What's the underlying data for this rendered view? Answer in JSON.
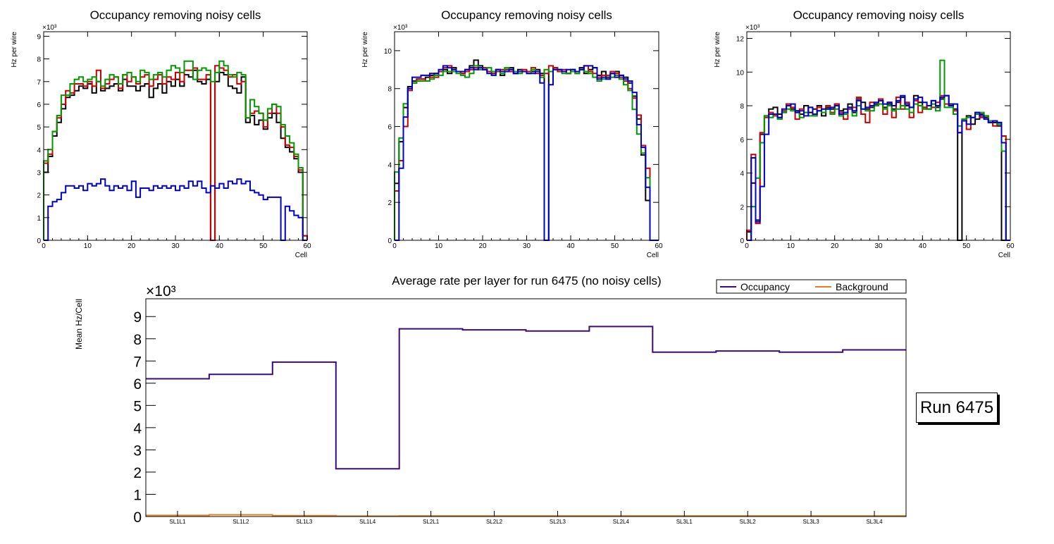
{
  "colors": {
    "black": "#000000",
    "red": "#cc0000",
    "green": "#009900",
    "blue": "#0000cc",
    "occupancy": "#3d0a78",
    "background": "#e08020"
  },
  "run_label": "Run 6475",
  "chart_data": [
    {
      "type": "step-histogram",
      "title": "Occupancy removing noisy cells",
      "xlabel": "Cell",
      "ylabel": "Hz per wire",
      "multiplier": "×10³",
      "xlim": [
        0,
        60
      ],
      "ylim": [
        0,
        9.2
      ],
      "xticks": [
        0,
        10,
        20,
        30,
        40,
        50,
        60
      ],
      "yticks": [
        0,
        1,
        2,
        3,
        4,
        5,
        6,
        7,
        8,
        9
      ],
      "series": [
        {
          "name": "black",
          "color": "#000000",
          "values": [
            3.0,
            3.7,
            4.6,
            5.2,
            5.8,
            6.3,
            6.4,
            6.6,
            6.8,
            6.7,
            6.9,
            6.5,
            7.0,
            6.6,
            6.7,
            6.8,
            6.9,
            6.6,
            7.1,
            6.8,
            6.8,
            6.6,
            6.8,
            6.9,
            6.3,
            6.7,
            6.9,
            6.5,
            7.0,
            6.8,
            7.1,
            6.8,
            7.3,
            7.2,
            7.5,
            7.0,
            6.9,
            7.1,
            0.0,
            7.0,
            7.4,
            7.3,
            6.8,
            6.7,
            6.5,
            7.2,
            5.2,
            5.5,
            5.1,
            5.3,
            4.9,
            5.4,
            5.6,
            5.2,
            4.5,
            4.1,
            3.9,
            3.6,
            3.0,
            0.2
          ]
        },
        {
          "name": "red",
          "color": "#cc0000",
          "values": [
            3.4,
            3.8,
            4.8,
            5.4,
            6.0,
            6.6,
            6.5,
            6.9,
            6.9,
            6.8,
            7.0,
            6.8,
            7.5,
            6.7,
            6.9,
            7.1,
            7.2,
            6.7,
            7.3,
            7.0,
            7.2,
            6.9,
            7.2,
            7.3,
            6.8,
            7.1,
            7.3,
            6.9,
            7.2,
            7.1,
            7.4,
            7.0,
            7.5,
            7.5,
            7.6,
            7.1,
            7.1,
            7.3,
            0.0,
            7.7,
            7.6,
            7.5,
            7.2,
            7.3,
            6.9,
            7.0,
            5.4,
            5.6,
            5.7,
            5.6,
            5.0,
            5.6,
            6.0,
            5.6,
            5.0,
            4.2,
            4.1,
            3.7,
            3.1,
            0.2
          ]
        },
        {
          "name": "green",
          "color": "#009900",
          "values": [
            3.5,
            4.0,
            4.8,
            5.5,
            6.4,
            6.4,
            6.9,
            7.1,
            7.2,
            7.0,
            7.1,
            7.2,
            7.0,
            6.8,
            7.1,
            7.3,
            7.2,
            6.9,
            7.3,
            7.4,
            7.2,
            7.0,
            7.5,
            7.4,
            7.1,
            7.3,
            7.4,
            7.2,
            7.5,
            7.7,
            7.6,
            7.4,
            7.9,
            7.9,
            7.1,
            7.5,
            7.6,
            7.5,
            7.0,
            7.4,
            7.9,
            7.7,
            7.3,
            7.2,
            7.4,
            7.3,
            5.4,
            6.2,
            5.9,
            5.6,
            5.3,
            5.8,
            6.0,
            5.9,
            5.1,
            4.6,
            4.3,
            3.8,
            3.2,
            0.0
          ]
        },
        {
          "name": "blue",
          "color": "#0000cc",
          "values": [
            0.0,
            1.5,
            1.7,
            1.8,
            2.1,
            2.4,
            2.4,
            2.3,
            2.4,
            2.2,
            2.5,
            2.4,
            2.5,
            2.7,
            2.4,
            2.2,
            2.4,
            2.3,
            2.4,
            2.2,
            2.6,
            1.9,
            2.3,
            2.3,
            2.2,
            2.4,
            2.3,
            2.4,
            2.3,
            2.4,
            2.2,
            2.4,
            2.3,
            2.6,
            2.4,
            2.6,
            2.3,
            2.1,
            2.4,
            2.3,
            2.5,
            2.3,
            2.6,
            2.5,
            2.7,
            2.5,
            2.6,
            2.2,
            2.1,
            2.0,
            1.8,
            1.9,
            1.9,
            1.9,
            0.0,
            1.5,
            1.3,
            1.1,
            1.0,
            0.0
          ]
        }
      ]
    },
    {
      "type": "step-histogram",
      "title": "Occupancy removing noisy cells",
      "xlabel": "Cell",
      "ylabel": "Hz per wire",
      "multiplier": "×10³",
      "xlim": [
        0,
        60
      ],
      "ylim": [
        0,
        11
      ],
      "xticks": [
        0,
        10,
        20,
        30,
        40,
        50,
        60
      ],
      "yticks": [
        0,
        2,
        4,
        6,
        8,
        10
      ],
      "series": [
        {
          "name": "black",
          "color": "#000000",
          "values": [
            3.0,
            5.2,
            7.0,
            8.1,
            8.4,
            8.5,
            8.5,
            8.6,
            8.7,
            8.8,
            8.9,
            9.0,
            8.8,
            9.1,
            8.9,
            8.8,
            9.0,
            9.2,
            9.5,
            9.2,
            9.0,
            8.9,
            8.8,
            9.0,
            8.7,
            9.0,
            9.1,
            8.8,
            9.0,
            8.9,
            8.9,
            8.9,
            9.0,
            8.8,
            0.0,
            8.9,
            9.1,
            9.0,
            8.9,
            8.8,
            9.0,
            8.9,
            9.1,
            8.8,
            9.0,
            9.1,
            8.7,
            8.9,
            8.6,
            8.8,
            8.9,
            8.7,
            8.6,
            8.3,
            7.6,
            6.4,
            4.5,
            2.1,
            0.0,
            0.0
          ]
        },
        {
          "name": "red",
          "color": "#cc0000",
          "values": [
            2.6,
            4.2,
            6.0,
            7.9,
            8.3,
            8.5,
            8.5,
            8.4,
            8.6,
            8.6,
            8.9,
            9.1,
            9.2,
            9.0,
            8.9,
            8.8,
            8.9,
            9.0,
            9.1,
            9.0,
            9.1,
            8.9,
            8.8,
            8.9,
            9.0,
            9.0,
            8.9,
            8.8,
            8.9,
            9.0,
            8.9,
            9.1,
            8.8,
            8.7,
            8.8,
            9.2,
            9.1,
            8.9,
            9.0,
            8.8,
            8.9,
            8.8,
            9.0,
            9.2,
            8.9,
            8.8,
            8.6,
            8.7,
            8.7,
            8.9,
            8.8,
            8.6,
            8.4,
            8.0,
            7.5,
            6.6,
            5.0,
            3.8,
            0.0,
            0.0
          ]
        },
        {
          "name": "green",
          "color": "#009900",
          "values": [
            3.6,
            5.4,
            7.2,
            8.0,
            8.3,
            8.4,
            8.4,
            8.4,
            8.5,
            8.7,
            8.7,
            8.9,
            8.9,
            8.9,
            8.8,
            8.7,
            8.6,
            8.8,
            9.2,
            9.0,
            9.0,
            9.1,
            8.9,
            9.0,
            8.8,
            9.1,
            9.0,
            8.9,
            8.8,
            8.9,
            8.8,
            9.0,
            8.9,
            8.6,
            9.0,
            8.9,
            9.0,
            9.0,
            8.8,
            8.8,
            8.9,
            8.8,
            9.0,
            8.9,
            8.8,
            8.6,
            8.4,
            8.5,
            8.5,
            8.6,
            8.7,
            8.5,
            8.2,
            7.9,
            6.9,
            5.6,
            4.6,
            3.3,
            0.0,
            0.0
          ]
        },
        {
          "name": "blue",
          "color": "#0000cc",
          "values": [
            0.0,
            3.8,
            6.5,
            8.0,
            8.6,
            8.6,
            8.7,
            8.7,
            8.8,
            8.8,
            9.0,
            9.2,
            9.1,
            9.0,
            8.9,
            8.9,
            9.0,
            9.1,
            9.0,
            9.1,
            9.0,
            8.8,
            8.7,
            9.0,
            8.9,
            8.9,
            9.0,
            8.8,
            8.9,
            8.9,
            8.8,
            8.8,
            8.9,
            8.3,
            0.0,
            8.2,
            9.0,
            9.0,
            8.9,
            9.0,
            9.0,
            8.9,
            9.0,
            9.2,
            9.2,
            9.1,
            8.5,
            8.6,
            8.5,
            8.8,
            8.6,
            8.7,
            8.5,
            8.4,
            7.8,
            6.1,
            4.9,
            2.8,
            0.0,
            0.0
          ]
        }
      ]
    },
    {
      "type": "step-histogram",
      "title": "Occupancy removing noisy cells",
      "xlabel": "Cell",
      "ylabel": "Hz per wire",
      "multiplier": "×10³",
      "xlim": [
        0,
        60
      ],
      "ylim": [
        0,
        12.4
      ],
      "xticks": [
        0,
        10,
        20,
        30,
        40,
        50,
        60
      ],
      "yticks": [
        0,
        2,
        4,
        6,
        8,
        10,
        12
      ],
      "series": [
        {
          "name": "black",
          "color": "#000000",
          "values": [
            0.5,
            3.4,
            1.2,
            6.3,
            7.4,
            7.8,
            7.9,
            7.5,
            7.6,
            8.1,
            7.8,
            7.7,
            7.5,
            8.0,
            7.6,
            7.8,
            8.0,
            7.4,
            7.9,
            7.8,
            8.1,
            7.7,
            7.8,
            8.1,
            7.6,
            8.4,
            8.2,
            7.8,
            7.9,
            8.1,
            8.3,
            7.9,
            8.1,
            7.8,
            8.2,
            8.5,
            8.0,
            7.9,
            8.6,
            8.2,
            7.9,
            7.8,
            8.3,
            7.9,
            8.4,
            8.6,
            8.1,
            7.8,
            0.0,
            7.1,
            7.4,
            6.9,
            7.2,
            7.5,
            7.3,
            7.0,
            7.0,
            6.8,
            0.0,
            0.0
          ]
        },
        {
          "name": "red",
          "color": "#cc0000",
          "values": [
            0.6,
            5.1,
            1.0,
            6.4,
            7.3,
            7.6,
            7.4,
            7.3,
            7.7,
            8.1,
            7.9,
            7.2,
            7.8,
            7.6,
            7.9,
            7.4,
            7.9,
            7.8,
            8.0,
            7.6,
            8.1,
            7.6,
            7.2,
            7.8,
            7.9,
            8.5,
            7.5,
            7.0,
            8.2,
            8.0,
            8.4,
            7.5,
            8.2,
            7.3,
            8.5,
            7.8,
            8.2,
            7.3,
            8.3,
            7.6,
            7.9,
            8.0,
            7.9,
            8.2,
            8.6,
            8.1,
            8.0,
            7.7,
            6.4,
            7.2,
            6.6,
            7.3,
            7.6,
            7.3,
            7.4,
            7.1,
            6.8,
            7.0,
            6.2,
            0.0
          ]
        },
        {
          "name": "green",
          "color": "#009900",
          "values": [
            0.0,
            2.0,
            3.7,
            5.8,
            7.4,
            7.3,
            7.5,
            7.2,
            7.6,
            7.8,
            7.7,
            7.6,
            7.3,
            7.6,
            7.4,
            7.4,
            7.7,
            7.6,
            7.8,
            7.5,
            7.8,
            7.4,
            7.5,
            7.9,
            7.4,
            8.0,
            7.8,
            7.7,
            7.7,
            8.0,
            8.1,
            7.8,
            8.0,
            7.7,
            7.8,
            8.0,
            7.8,
            7.6,
            8.1,
            8.0,
            7.8,
            7.8,
            8.1,
            7.7,
            10.7,
            7.9,
            7.9,
            7.5,
            6.8,
            7.2,
            7.3,
            7.3,
            7.5,
            7.6,
            7.4,
            7.1,
            7.1,
            6.9,
            5.3,
            0.0
          ]
        },
        {
          "name": "blue",
          "color": "#0000cc",
          "values": [
            0.0,
            4.9,
            1.1,
            3.2,
            6.3,
            7.5,
            7.5,
            7.3,
            7.8,
            8.0,
            8.1,
            7.6,
            7.7,
            7.4,
            7.9,
            7.5,
            7.7,
            7.8,
            7.8,
            7.9,
            8.0,
            7.5,
            7.6,
            7.9,
            7.7,
            8.3,
            7.8,
            7.9,
            8.0,
            8.2,
            8.3,
            8.1,
            8.2,
            8.0,
            8.3,
            8.6,
            8.1,
            7.9,
            8.4,
            8.5,
            8.2,
            8.0,
            8.3,
            8.0,
            8.5,
            8.6,
            8.0,
            8.1,
            6.4,
            7.1,
            6.9,
            7.3,
            7.6,
            7.4,
            7.2,
            7.0,
            7.1,
            7.0,
            5.8,
            0.0
          ]
        }
      ]
    },
    {
      "type": "step-histogram",
      "title": "Average rate per layer for run 6475 (no noisy cells)",
      "xlabel": "",
      "ylabel": "Mean Hz/Cell",
      "multiplier": "×10³",
      "categories": [
        "SL1L1",
        "SL1L2",
        "SL1L3",
        "SL1L4",
        "SL2L1",
        "SL2L2",
        "SL2L3",
        "SL2L4",
        "SL3L1",
        "SL3L2",
        "SL3L3",
        "SL3L4"
      ],
      "ylim": [
        0,
        9.8
      ],
      "yticks": [
        0,
        1,
        2,
        3,
        4,
        5,
        6,
        7,
        8,
        9
      ],
      "legend": {
        "position": "top-right",
        "entries": [
          "Occupancy",
          "Background"
        ]
      },
      "series": [
        {
          "name": "Occupancy",
          "color": "#3d0a78",
          "values": [
            6.2,
            6.4,
            6.95,
            2.15,
            8.45,
            8.4,
            8.35,
            8.55,
            7.4,
            7.45,
            7.4,
            7.5
          ]
        },
        {
          "name": "Background",
          "color": "#e08020",
          "values": [
            0.05,
            0.08,
            0.04,
            0.02,
            0.03,
            0.03,
            0.03,
            0.03,
            0.03,
            0.03,
            0.03,
            0.03
          ]
        }
      ]
    }
  ]
}
